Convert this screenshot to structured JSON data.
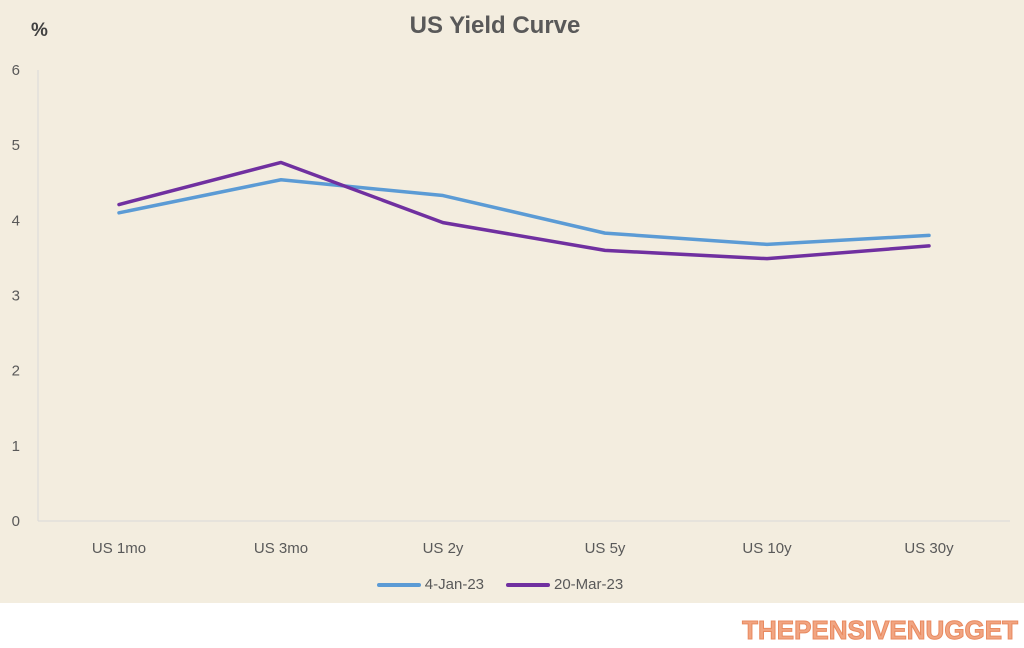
{
  "chart_data": {
    "type": "line",
    "title": "US Yield Curve",
    "ylabel": "%",
    "xlabel": "",
    "categories": [
      "US 1mo",
      "US 3mo",
      "US 2y",
      "US 5y",
      "US 10y",
      "US 30y"
    ],
    "ylim": [
      0,
      6
    ],
    "yticks": [
      0,
      1,
      2,
      3,
      4,
      5,
      6
    ],
    "grid": false,
    "legend": "bottom",
    "series": [
      {
        "name": "4-Jan-23",
        "color": "#5b9bd5",
        "values": [
          4.1,
          4.54,
          4.33,
          3.83,
          3.68,
          3.8
        ]
      },
      {
        "name": "20-Mar-23",
        "color": "#7030a0",
        "values": [
          4.21,
          4.77,
          3.97,
          3.6,
          3.49,
          3.66
        ]
      }
    ]
  },
  "watermark": "THEPENSIVENUGGET"
}
